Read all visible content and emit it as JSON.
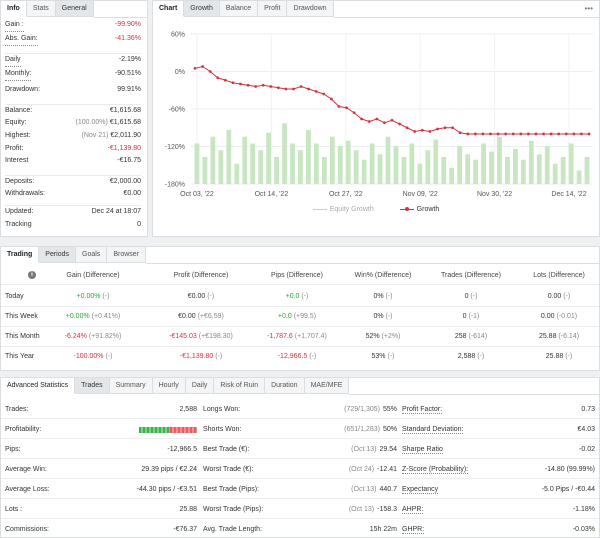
{
  "info": {
    "tabs": [
      "Info",
      "Stats",
      "General"
    ],
    "rows": [
      {
        "label": "Gain :",
        "value": "-99.90%",
        "cls": "red",
        "u": true
      },
      {
        "label": "Abs. Gain:",
        "value": "-41.36%",
        "cls": "red",
        "u": true
      },
      {
        "label": "Daily",
        "value": "-2.19%",
        "u": true
      },
      {
        "label": "Monthly:",
        "value": "-90.51%",
        "u": true
      },
      {
        "label": "Drawdown:",
        "value": "99.91%"
      },
      {
        "label": "Balance:",
        "value": "€1,615.68"
      },
      {
        "label": "Equity:",
        "note": "(100.00%)",
        "value": "€1,615.68"
      },
      {
        "label": "Highest:",
        "note": "(Nov 21)",
        "value": "€2,011.90"
      },
      {
        "label": "Profit:",
        "value": "-€1,139.80",
        "cls": "red"
      },
      {
        "label": "Interest",
        "value": "-€16.75"
      },
      {
        "label": "Deposits:",
        "value": "€2,000.00"
      },
      {
        "label": "Withdrawals:",
        "value": "€0.00"
      },
      {
        "label": "Updated:",
        "value": "Dec 24 at 18:07"
      },
      {
        "label": "Tracking",
        "value": "0"
      }
    ]
  },
  "chart": {
    "tabs": [
      "Chart",
      "Growth",
      "Balance",
      "Profit",
      "Drawdown"
    ],
    "menu": "•••",
    "legend": [
      "Equity Growth",
      "Growth"
    ],
    "colors": {
      "growth": "#d9313d",
      "bars": "#c7e6c1",
      "equity": "#cccccc"
    }
  },
  "chart_data": {
    "type": "line",
    "yticks": [
      "60%",
      "0%",
      "-60%",
      "-120%",
      "-180%"
    ],
    "ylim": [
      -180,
      60
    ],
    "xticks": [
      "Oct 03, '22",
      "Oct 14, '22",
      "Oct 27, '22",
      "Nov 09, '22",
      "Nov 30, '22",
      "Dec 14, '22"
    ],
    "growth": [
      5,
      8,
      0,
      -10,
      -14,
      -18,
      -20,
      -22,
      -24,
      -22,
      -24,
      -26,
      -28,
      -28,
      -24,
      -28,
      -32,
      -36,
      -44,
      -56,
      -58,
      -66,
      -76,
      -80,
      -76,
      -82,
      -78,
      -84,
      -90,
      -96,
      -94,
      -96,
      -92,
      -90,
      -90,
      -98,
      -99.9,
      -99.9,
      -99.9,
      -99.9,
      -99.9,
      -99.9,
      -99.9,
      -99.9,
      -99.9,
      -99.9,
      -99.9,
      -99.9,
      -99.9,
      -99.9,
      -99.9,
      -99.9,
      -99.9
    ],
    "bars": [
      30,
      20,
      35,
      25,
      40,
      15,
      35,
      30,
      25,
      38,
      20,
      45,
      30,
      25,
      40,
      30,
      20,
      35,
      28,
      32,
      25,
      18,
      30,
      22,
      35,
      28,
      20,
      30,
      15,
      25,
      33,
      20,
      12,
      28,
      22,
      18,
      30,
      24,
      35,
      20,
      26,
      18,
      32,
      22,
      28,
      15,
      20,
      30,
      10,
      20
    ],
    "series": [
      {
        "name": "Equity Growth"
      },
      {
        "name": "Growth"
      }
    ]
  },
  "periods": {
    "tabs": [
      "Trading",
      "Periods",
      "Goals",
      "Browser"
    ],
    "headers": [
      "Gain (Difference)",
      "Profit (Difference)",
      "Pips (Difference)",
      "Win% (Difference)",
      "Trades (Difference)",
      "Lots (Difference)"
    ],
    "rows": [
      {
        "label": "Today",
        "cells": [
          [
            "+0.00%",
            " (-)",
            "green"
          ],
          [
            "€0.00",
            " (-)",
            ""
          ],
          [
            "+0.0",
            " (-)",
            "green"
          ],
          [
            "0%",
            " (-)",
            ""
          ],
          [
            "0",
            " (-)",
            ""
          ],
          [
            "0.00",
            " (-)",
            ""
          ]
        ]
      },
      {
        "label": "This Week",
        "cells": [
          [
            "+0.00%",
            " (+0.41%)",
            "green"
          ],
          [
            "€0.00",
            " (+€6.59)",
            ""
          ],
          [
            "+0.0",
            " (+99.5)",
            "green"
          ],
          [
            "0%",
            " (-)",
            ""
          ],
          [
            "0",
            " (-1)",
            ""
          ],
          [
            "0.00",
            " (-0.01)",
            ""
          ]
        ]
      },
      {
        "label": "This Month",
        "cells": [
          [
            "-6.24%",
            " (+91.82%)",
            "red"
          ],
          [
            "-€145.03",
            " (+€198.30)",
            "red"
          ],
          [
            "-1,787.6",
            " (+1,707.4)",
            "red"
          ],
          [
            "52%",
            " (+2%)",
            ""
          ],
          [
            "258",
            " (-614)",
            ""
          ],
          [
            "25.88",
            " (-6.14)",
            ""
          ]
        ]
      },
      {
        "label": "This Year",
        "cells": [
          [
            "-100.00%",
            " (-)",
            "red"
          ],
          [
            "-€1,139.80",
            " (-)",
            "red"
          ],
          [
            "-12,966.5",
            " (-)",
            "red"
          ],
          [
            "53%",
            " (-)",
            ""
          ],
          [
            "2,588",
            " (-)",
            ""
          ],
          [
            "25.88",
            " (-)",
            ""
          ]
        ]
      }
    ]
  },
  "advanced": {
    "title": "Advanced Statistics",
    "tabs": [
      "Trades",
      "Summary",
      "Hourly",
      "Daily",
      "Risk of Ruin",
      "Duration",
      "MAE/MFE"
    ],
    "profitability": {
      "label": "Profitability:",
      "win_pct": 53
    },
    "col1": [
      {
        "label": "Trades:",
        "value": "2,588"
      },
      {
        "label": "Profitability:",
        "value": ""
      },
      {
        "label": "Pips:",
        "value": "-12,966.5"
      },
      {
        "label": "Average Win:",
        "value": "29.39 pips / €2.24"
      },
      {
        "label": "Average Loss:",
        "value": "-44.30 pips / -€3.51"
      },
      {
        "label": "Lots :",
        "value": "25.88"
      },
      {
        "label": "Commissions:",
        "value": "-€76.37"
      }
    ],
    "col2": [
      {
        "label": "Longs Won:",
        "note": "(729/1,305)",
        "value": "55%"
      },
      {
        "label": "Shorts Won:",
        "note": "(651/1,283)",
        "value": "50%"
      },
      {
        "label": "Best Trade (€):",
        "note": "(Oct 13)",
        "value": "29.54"
      },
      {
        "label": "Worst Trade (€):",
        "note": "(Oct 24)",
        "value": "-12.41"
      },
      {
        "label": "Best Trade (Pips):",
        "note": "(Oct 13)",
        "value": "440.7"
      },
      {
        "label": "Worst Trade (Pips):",
        "note": "(Oct 13)",
        "value": "-158.3"
      },
      {
        "label": "Avg. Trade Length:",
        "note": "",
        "value": "15h 22m"
      }
    ],
    "col3": [
      {
        "label": "Profit Factor:",
        "value": "0.73"
      },
      {
        "label": "Standard Deviation:",
        "value": "€4.03"
      },
      {
        "label": "Sharpe Ratio",
        "value": "-0.02"
      },
      {
        "label": "Z-Score (Probability):",
        "value": "-14.80 (99.99%)"
      },
      {
        "label": "Expectancy",
        "value": "-5.0 Pips / -€0.44"
      },
      {
        "label": "AHPR:",
        "value": "-1.18%"
      },
      {
        "label": "GHPR:",
        "value": "-0.03%"
      }
    ]
  }
}
